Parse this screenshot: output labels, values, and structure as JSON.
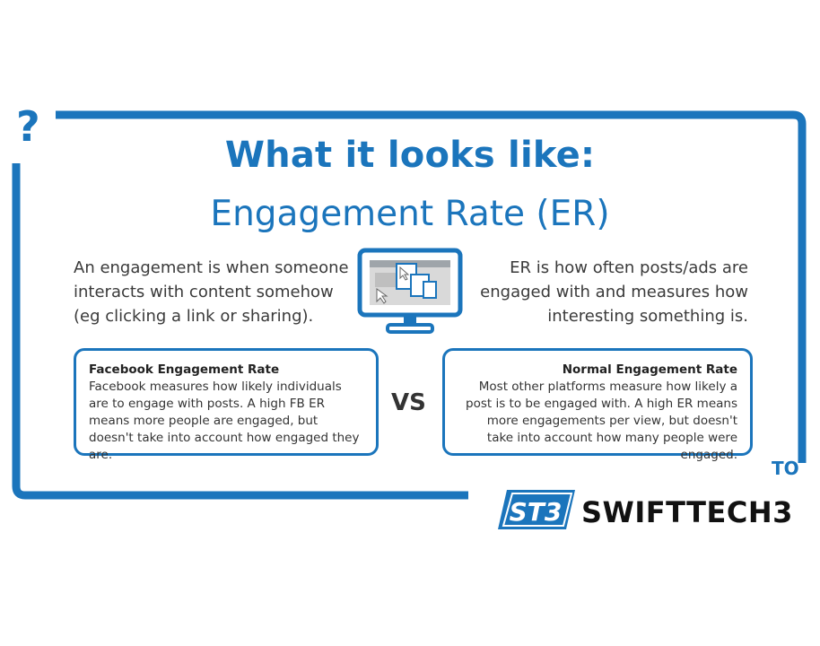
{
  "corner_mark": "?",
  "title": "What it looks like:",
  "subtitle": "Engagement Rate (ER)",
  "left_description": "An engagement is when someone interacts with content somehow (eg clicking a link or sharing).",
  "right_description": "ER is how often posts/ads are engaged with and measures how interesting something is.",
  "comparison_label": "VS",
  "facebook_card": {
    "title": "Facebook Engagement Rate",
    "body": "Facebook measures how likely individuals are to engage with posts. A high FB ER means more people are engaged, but doesn't take into account how engaged they are."
  },
  "normal_card": {
    "title": "Normal Engagement Rate",
    "body": "Most other platforms measure how likely a post is to be engaged with. A high ER means more engagements per view, but doesn't take into account how many people were engaged."
  },
  "corner_partial_text": "TO",
  "brand": {
    "logo_text": "ST3",
    "name": "SWIFTTECH3"
  },
  "colors": {
    "accent": "#1b75bc",
    "text": "#333333"
  },
  "icons": [
    "question-mark-icon",
    "monitor-icon",
    "swifttech3-logo-icon"
  ]
}
